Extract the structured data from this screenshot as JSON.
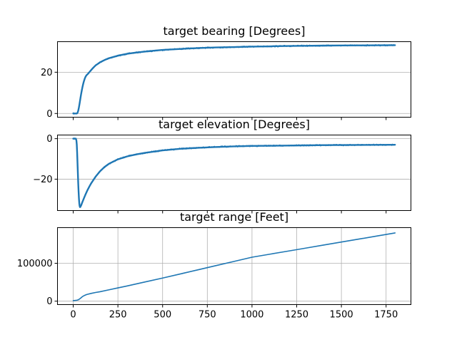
{
  "colors": {
    "series": "#1f77b4",
    "grid": "#b0b0b0",
    "axes": "#000000"
  },
  "chart_data": [
    {
      "type": "line",
      "title": "target bearing [Degrees]",
      "xlabel": "",
      "ylabel": "",
      "xlim": [
        -88,
        1889
      ],
      "ylim": [
        -1.8,
        34.8
      ],
      "yticks": [
        0,
        20
      ],
      "ytick_labels": [
        "0",
        "20"
      ],
      "xticks": [
        0,
        250,
        500,
        750,
        1000,
        1250,
        1500,
        1750
      ],
      "xtick_labels": [],
      "grid": "y",
      "noisy": true,
      "series": [
        {
          "x": [
            0,
            20,
            24,
            28,
            32,
            36,
            40,
            44,
            48,
            52,
            56,
            60,
            65,
            70,
            75,
            80,
            90,
            100,
            110,
            125,
            150,
            175,
            200,
            250,
            300,
            350,
            400,
            450,
            500,
            600,
            700,
            800,
            900,
            1000,
            1100,
            1200,
            1300,
            1400,
            1500,
            1600,
            1700,
            1800
          ],
          "y": [
            0,
            0,
            0.3,
            1.3,
            3.0,
            5.0,
            7.2,
            9.3,
            11.2,
            12.9,
            14.4,
            15.7,
            17.0,
            18.0,
            18.6,
            19.0,
            20.0,
            21.0,
            22.0,
            23.3,
            24.8,
            25.9,
            26.8,
            28.0,
            28.9,
            29.5,
            30.0,
            30.4,
            30.8,
            31.3,
            31.7,
            32.0,
            32.2,
            32.4,
            32.55,
            32.7,
            32.8,
            32.9,
            32.95,
            33.0,
            33.05,
            33.1
          ]
        }
      ]
    },
    {
      "type": "line",
      "title": "target elevation [Degrees]",
      "xlabel": "",
      "ylabel": "",
      "xlim": [
        -88,
        1889
      ],
      "ylim": [
        -35.5,
        1.8
      ],
      "yticks": [
        0,
        -20
      ],
      "ytick_labels": [
        "0",
        "−20"
      ],
      "xticks": [
        0,
        250,
        500,
        750,
        1000,
        1250,
        1500,
        1750
      ],
      "xtick_labels": [],
      "grid": "y",
      "noisy": true,
      "series": [
        {
          "x": [
            0,
            15,
            18,
            20,
            22,
            24,
            26,
            28,
            30,
            32,
            34,
            36,
            38,
            40,
            45,
            50,
            55,
            60,
            70,
            80,
            90,
            100,
            125,
            150,
            175,
            200,
            250,
            300,
            350,
            400,
            500,
            600,
            700,
            800,
            900,
            1000,
            1100,
            1200,
            1300,
            1400,
            1500,
            1600,
            1700,
            1800
          ],
          "y": [
            0,
            0,
            -1,
            -3,
            -7,
            -12,
            -17,
            -22,
            -26,
            -29.5,
            -32,
            -33.3,
            -33.8,
            -33.7,
            -32.8,
            -31.6,
            -30.5,
            -29.4,
            -27.3,
            -25.4,
            -23.7,
            -22.1,
            -18.8,
            -16.1,
            -14.0,
            -12.4,
            -10.2,
            -8.8,
            -7.8,
            -7.0,
            -5.8,
            -5.0,
            -4.5,
            -4.1,
            -3.8,
            -3.6,
            -3.5,
            -3.4,
            -3.3,
            -3.2,
            -3.15,
            -3.1,
            -3.05,
            -3.0
          ]
        }
      ]
    },
    {
      "type": "line",
      "title": "target range [Feet]",
      "xlabel": "",
      "ylabel": "",
      "xlim": [
        -88,
        1889
      ],
      "ylim": [
        -9000,
        194000
      ],
      "yticks": [
        0,
        100000
      ],
      "ytick_labels": [
        "0",
        "100000"
      ],
      "xticks": [
        0,
        250,
        500,
        750,
        1000,
        1250,
        1500,
        1750
      ],
      "xtick_labels": [
        "0",
        "250",
        "500",
        "750",
        "1000",
        "1250",
        "1500",
        "1750"
      ],
      "grid": "both",
      "noisy": false,
      "series": [
        {
          "x": [
            0,
            20,
            30,
            40,
            50,
            60,
            75,
            100,
            125,
            150,
            200,
            250,
            300,
            400,
            500,
            600,
            700,
            800,
            900,
            1000,
            1100,
            1200,
            1300,
            1400,
            1500,
            1600,
            1700,
            1800
          ],
          "y": [
            1500,
            2500,
            4000,
            7500,
            11500,
            14500,
            17500,
            20500,
            23000,
            25000,
            30000,
            35000,
            40000,
            50500,
            61000,
            72000,
            83000,
            94000,
            105000,
            116000,
            124000,
            132000,
            140000,
            148000,
            156000,
            164000,
            172000,
            180000
          ]
        }
      ]
    }
  ]
}
